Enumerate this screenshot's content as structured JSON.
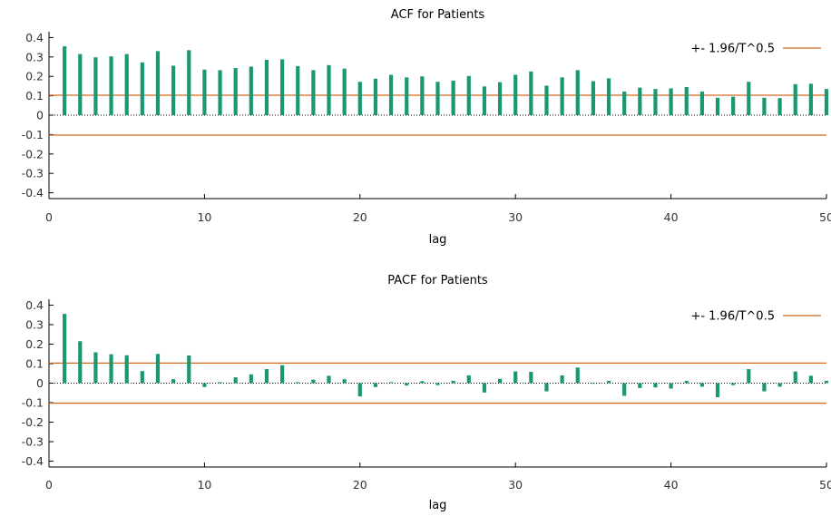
{
  "colors": {
    "bar": "#1a9873",
    "band": "#d2691e",
    "axis": "#000000",
    "tick_text": "#333333"
  },
  "chart_data": [
    {
      "type": "bar",
      "title": "ACF for Patients",
      "xlabel": "lag",
      "ylabel": "",
      "xlim": [
        0,
        50
      ],
      "ylim": [
        -0.43,
        0.43
      ],
      "xticks": [
        0,
        10,
        20,
        30,
        40,
        50
      ],
      "yticks": [
        -0.4,
        -0.3,
        -0.2,
        -0.1,
        0,
        0.1,
        0.2,
        0.3,
        0.4
      ],
      "ytick_labels": [
        "-0.4",
        "-0.3",
        "-0.2",
        "-0.1",
        "0",
        "0.1",
        "0.2",
        "0.3",
        "0.4"
      ],
      "xtick_labels": [
        "0",
        "10",
        "20",
        "30",
        "40",
        "50"
      ],
      "band": 0.103,
      "legend": "+- 1.96/T^0.5",
      "legend_position": "top-right",
      "grid": false,
      "lags": [
        1,
        2,
        3,
        4,
        5,
        6,
        7,
        8,
        9,
        10,
        11,
        12,
        13,
        14,
        15,
        16,
        17,
        18,
        19,
        20,
        21,
        22,
        23,
        24,
        25,
        26,
        27,
        28,
        29,
        30,
        31,
        32,
        33,
        34,
        35,
        36,
        37,
        38,
        39,
        40,
        41,
        42,
        43,
        44,
        45,
        46,
        47,
        48,
        49,
        50
      ],
      "values": [
        0.355,
        0.315,
        0.298,
        0.303,
        0.315,
        0.272,
        0.33,
        0.255,
        0.335,
        0.235,
        0.232,
        0.243,
        0.25,
        0.285,
        0.288,
        0.253,
        0.232,
        0.258,
        0.24,
        0.172,
        0.188,
        0.208,
        0.195,
        0.2,
        0.172,
        0.178,
        0.202,
        0.148,
        0.17,
        0.208,
        0.225,
        0.152,
        0.195,
        0.232,
        0.175,
        0.19,
        0.122,
        0.142,
        0.135,
        0.138,
        0.145,
        0.122,
        0.09,
        0.095,
        0.172,
        0.09,
        0.088,
        0.16,
        0.162,
        0.135
      ]
    },
    {
      "type": "bar",
      "title": "PACF for Patients",
      "xlabel": "lag",
      "ylabel": "",
      "xlim": [
        0,
        50
      ],
      "ylim": [
        -0.43,
        0.43
      ],
      "xticks": [
        0,
        10,
        20,
        30,
        40,
        50
      ],
      "yticks": [
        -0.4,
        -0.3,
        -0.2,
        -0.1,
        0,
        0.1,
        0.2,
        0.3,
        0.4
      ],
      "ytick_labels": [
        "-0.4",
        "-0.3",
        "-0.2",
        "-0.1",
        "0",
        "0.1",
        "0.2",
        "0.3",
        "0.4"
      ],
      "xtick_labels": [
        "0",
        "10",
        "20",
        "30",
        "40",
        "50"
      ],
      "band": 0.103,
      "legend": "+- 1.96/T^0.5",
      "legend_position": "top-right",
      "grid": false,
      "lags": [
        1,
        2,
        3,
        4,
        5,
        6,
        7,
        8,
        9,
        10,
        11,
        12,
        13,
        14,
        15,
        16,
        17,
        18,
        19,
        20,
        21,
        22,
        23,
        24,
        25,
        26,
        27,
        28,
        29,
        30,
        31,
        32,
        33,
        34,
        35,
        36,
        37,
        38,
        39,
        40,
        41,
        42,
        43,
        44,
        45,
        46,
        47,
        48,
        49,
        50
      ],
      "values": [
        0.355,
        0.215,
        0.158,
        0.148,
        0.143,
        0.062,
        0.15,
        0.02,
        0.142,
        -0.02,
        0.005,
        0.03,
        0.045,
        0.072,
        0.092,
        0.005,
        0.018,
        0.038,
        0.02,
        -0.068,
        -0.02,
        0.005,
        -0.012,
        0.01,
        -0.01,
        0.012,
        0.04,
        -0.048,
        0.022,
        0.06,
        0.058,
        -0.042,
        0.04,
        0.08,
        -0.003,
        0.012,
        -0.065,
        -0.025,
        -0.022,
        -0.028,
        0.012,
        -0.018,
        -0.072,
        -0.01,
        0.072,
        -0.042,
        -0.018,
        0.06,
        0.038,
        0.012
      ]
    }
  ]
}
